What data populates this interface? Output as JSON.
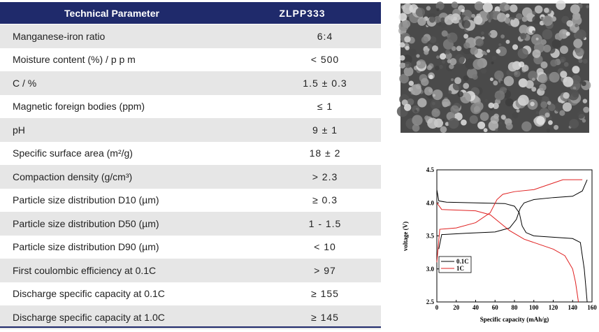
{
  "table": {
    "header": [
      "Technical Parameter",
      "ZLPP333"
    ],
    "rows": [
      [
        "Manganese-iron ratio",
        "6:4"
      ],
      [
        "Moisture content (%) / p p m",
        "< 500"
      ],
      [
        "C / %",
        "1.5 ± 0.3"
      ],
      [
        "Magnetic foreign bodies (ppm)",
        "≤ 1"
      ],
      [
        "pH",
        "9 ± 1"
      ],
      [
        "Specific surface area (m²/g)",
        "18 ± 2"
      ],
      [
        "Compaction density (g/cm³)",
        "> 2.3"
      ],
      [
        "Particle size distribution D10 (µm)",
        "≥ 0.3"
      ],
      [
        "Particle size distribution D50 (µm)",
        "1 - 1.5"
      ],
      [
        "Particle size distribution D90 (µm)",
        "< 10"
      ],
      [
        "First coulombic efficiency at 0.1C",
        "> 97"
      ],
      [
        "Discharge specific capacity at 0.1C",
        "≥ 155"
      ],
      [
        "Discharge specific capacity at 1.0C",
        "≥ 145"
      ]
    ]
  },
  "chart_data": {
    "type": "line",
    "x_label": "Specific capacity (mAh/g)",
    "y_label": "voltage (V)",
    "xlim": [
      0,
      160
    ],
    "xticks": [
      0,
      20,
      40,
      60,
      80,
      100,
      120,
      140,
      160
    ],
    "ylim": [
      2.5,
      4.5
    ],
    "yticks": [
      2.5,
      {
        "value": 3,
        "label": "3.0"
      },
      3.5,
      {
        "value": 4,
        "label": "4.0"
      },
      4.5
    ],
    "series": [
      {
        "name": "0.1C",
        "color": "#000000",
        "x": [
          0,
          2,
          10,
          40,
          70,
          80,
          85,
          88,
          92,
          100,
          120,
          140,
          148,
          152,
          155,
          null,
          2,
          5,
          30,
          60,
          75,
          82,
          86,
          90,
          100,
          120,
          140,
          150,
          155
        ],
        "values": [
          4.2,
          4.03,
          4.01,
          4.0,
          3.99,
          3.95,
          3.85,
          3.65,
          3.55,
          3.5,
          3.48,
          3.46,
          3.4,
          3.0,
          2.5,
          null,
          3.3,
          3.52,
          3.54,
          3.56,
          3.62,
          3.75,
          3.92,
          4.0,
          4.05,
          4.08,
          4.1,
          4.18,
          4.35
        ]
      },
      {
        "name": "1C",
        "color": "#e02020",
        "x": [
          0,
          5,
          40,
          55,
          65,
          75,
          90,
          100,
          120,
          132,
          140,
          143,
          146,
          null,
          0,
          3,
          20,
          40,
          55,
          62,
          68,
          80,
          100,
          120,
          130,
          150
        ],
        "values": [
          4.0,
          3.9,
          3.88,
          3.82,
          3.7,
          3.58,
          3.45,
          3.4,
          3.3,
          3.2,
          3.0,
          2.8,
          2.5,
          null,
          3.1,
          3.6,
          3.62,
          3.7,
          3.85,
          4.05,
          4.13,
          4.17,
          4.2,
          4.3,
          4.35,
          4.35
        ]
      }
    ]
  }
}
